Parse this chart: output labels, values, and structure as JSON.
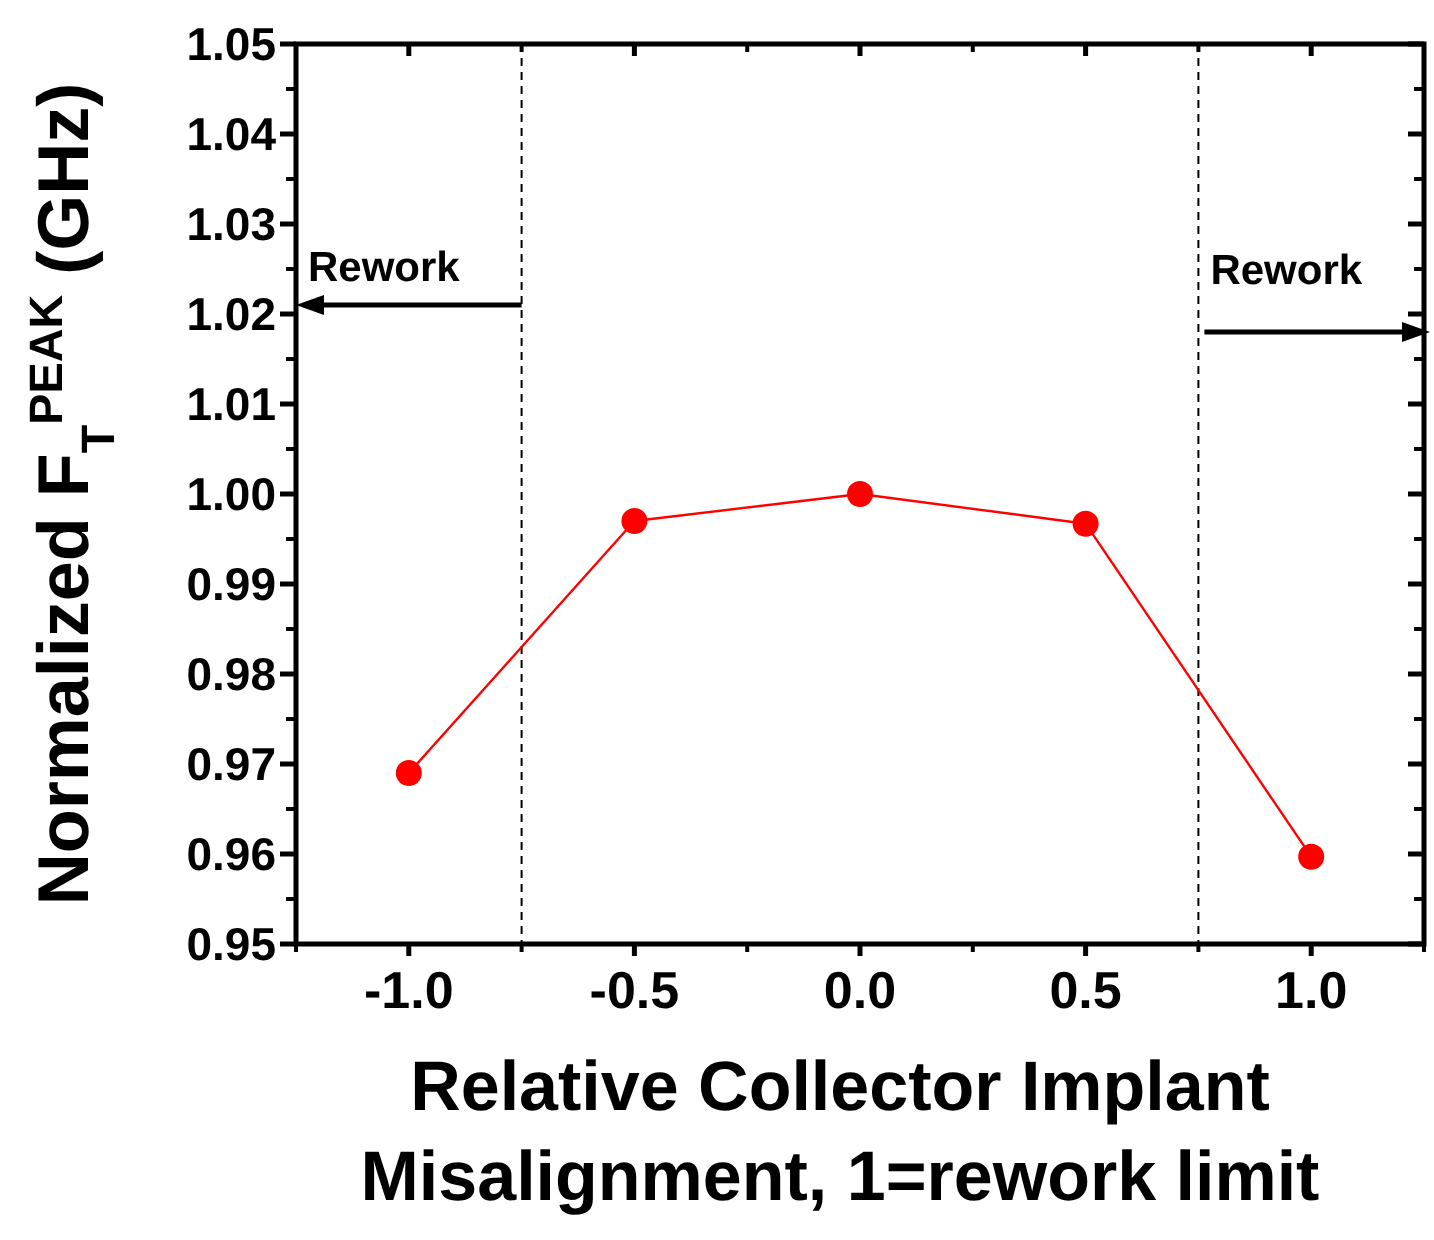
{
  "chart_data": {
    "type": "line",
    "xlabel": "Relative Collector Implant\nMisalignment, 1=rework limit",
    "ylabel": "Normalized F$_{T}$$^{PEAK}$ (GHz)",
    "x": [
      -1.0,
      -0.5,
      0.0,
      0.5,
      1.0
    ],
    "series": [
      {
        "color": "#ff0000",
        "values": [
          0.969,
          0.997,
          1.0,
          0.9967,
          0.9597
        ]
      }
    ],
    "xlim": [
      -1.25,
      1.25
    ],
    "xticks": [
      {
        "value": -1,
        "label": "-1.0"
      },
      {
        "value": -0.5,
        "label": "-0.5"
      },
      {
        "value": 0,
        "label": "0.0"
      },
      {
        "value": 0.5,
        "label": "0.5"
      },
      {
        "value": 1,
        "label": "1.0"
      }
    ],
    "ylim": [
      0.95,
      1.05
    ],
    "yticks": [
      {
        "value": 0.95,
        "label": "0.95"
      },
      {
        "value": 0.96,
        "label": "0.96"
      },
      {
        "value": 0.97,
        "label": "0.97"
      },
      {
        "value": 0.98,
        "label": "0.98"
      },
      {
        "value": 0.99,
        "label": "0.99"
      },
      {
        "value": 1.0,
        "label": "1.00"
      },
      {
        "value": 1.01,
        "label": "1.01"
      },
      {
        "value": 1.02,
        "label": "1.02"
      },
      {
        "value": 1.03,
        "label": "1.03"
      },
      {
        "value": 1.04,
        "label": "1.04"
      },
      {
        "value": 1.05,
        "label": "1.05"
      }
    ],
    "ref_lines": [
      {
        "axis": "x",
        "value": -0.75,
        "color": "#000000",
        "line_style": "dashed"
      },
      {
        "axis": "x",
        "value": 0.75,
        "color": "#000000",
        "line_style": "dashed"
      }
    ],
    "annotations": [
      {
        "text": "Rework",
        "x": -0.75,
        "y": 1.021
      },
      {
        "text": "Rework",
        "x": 0.75,
        "y": 1.018
      }
    ],
    "marker": "circle",
    "line_style": "solid",
    "grid": false
  }
}
